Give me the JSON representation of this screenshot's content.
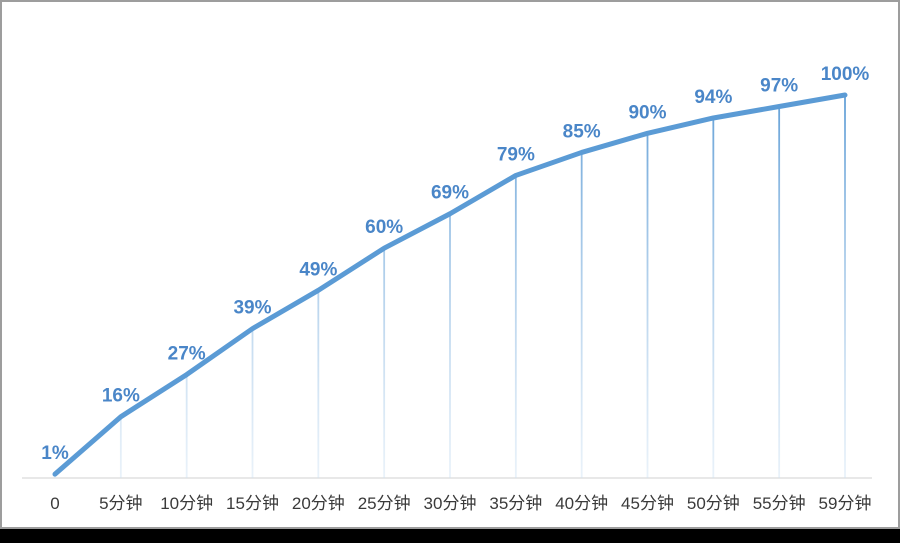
{
  "frame": {
    "background": "#ffffff",
    "border_color": "#9d9d9d",
    "bottom_bar_color": "#000000"
  },
  "chart_data": {
    "type": "line",
    "title": "",
    "xlabel": "",
    "ylabel": "",
    "categories": [
      "0",
      "5分钟",
      "10分钟",
      "15分钟",
      "20分钟",
      "25分钟",
      "30分钟",
      "35分钟",
      "40分钟",
      "45分钟",
      "50分钟",
      "55分钟",
      "59分钟"
    ],
    "values": [
      1,
      16,
      27,
      39,
      49,
      60,
      69,
      79,
      85,
      90,
      94,
      97,
      100
    ],
    "data_labels": [
      "1%",
      "16%",
      "27%",
      "39%",
      "49%",
      "60%",
      "69%",
      "79%",
      "85%",
      "90%",
      "94%",
      "97%",
      "100%"
    ],
    "ylim": [
      0,
      100
    ],
    "grid": false,
    "legend": "none",
    "drop_lines": true,
    "styles": {
      "line_color": "#5b9bd5",
      "line_width": 5,
      "label_color": "#4a86c8",
      "axis_color": "#d9d9d9",
      "tick_label_color": "#3a3a3a",
      "drop_line_top_color": "#5b9bd5",
      "drop_line_bottom_color": "#cfe2f3"
    }
  }
}
